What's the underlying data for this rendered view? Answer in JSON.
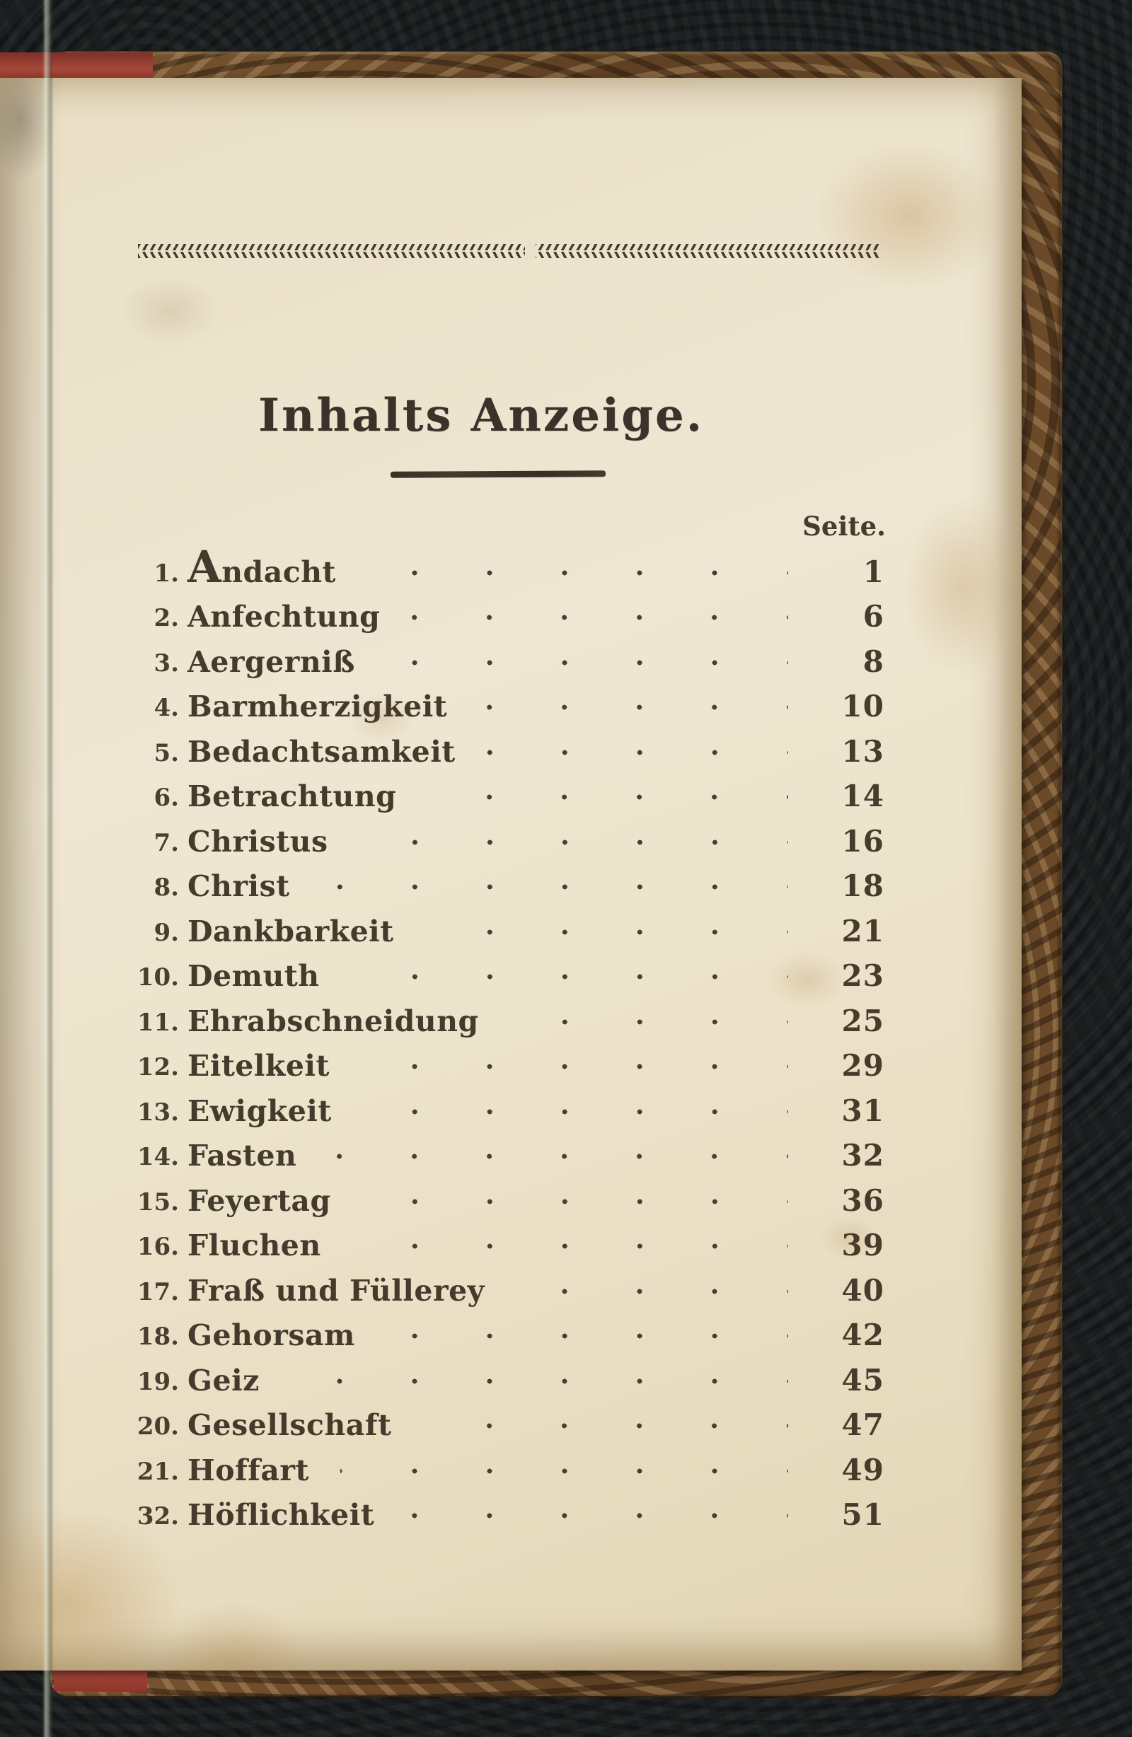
{
  "page": {
    "title": "Inhalts Anzeige.",
    "column_header": "Seite.",
    "entries": [
      {
        "num": "1.",
        "label": "Andacht",
        "page": "1"
      },
      {
        "num": "2.",
        "label": "Anfechtung",
        "page": "6"
      },
      {
        "num": "3.",
        "label": "Aergerniß",
        "page": "8"
      },
      {
        "num": "4.",
        "label": "Barmherzigkeit",
        "page": "10"
      },
      {
        "num": "5.",
        "label": "Bedachtsamkeit",
        "page": "13"
      },
      {
        "num": "6.",
        "label": "Betrachtung",
        "page": "14"
      },
      {
        "num": "7.",
        "label": "Christus",
        "page": "16"
      },
      {
        "num": "8.",
        "label": "Christ",
        "page": "18"
      },
      {
        "num": "9.",
        "label": "Dankbarkeit",
        "page": "21"
      },
      {
        "num": "10.",
        "label": "Demuth",
        "page": "23"
      },
      {
        "num": "11.",
        "label": "Ehrabschneidung",
        "page": "25"
      },
      {
        "num": "12.",
        "label": "Eitelkeit",
        "page": "29"
      },
      {
        "num": "13.",
        "label": "Ewigkeit",
        "page": "31"
      },
      {
        "num": "14.",
        "label": "Fasten",
        "page": "32"
      },
      {
        "num": "15.",
        "label": "Feyertag",
        "page": "36"
      },
      {
        "num": "16.",
        "label": "Fluchen",
        "page": "39"
      },
      {
        "num": "17.",
        "label": "Fraß und Füllerey",
        "page": "40"
      },
      {
        "num": "18.",
        "label": "Gehorsam",
        "page": "42"
      },
      {
        "num": "19.",
        "label": "Geiz",
        "page": "45"
      },
      {
        "num": "20.",
        "label": "Gesellschaft",
        "page": "47"
      },
      {
        "num": "21.",
        "label": "Hoffart",
        "page": "49"
      },
      {
        "num": "32.",
        "label": "Höflichkeit",
        "page": "51"
      }
    ]
  },
  "colors": {
    "paper": "#ece2c9",
    "ink": "#453a2c",
    "cover_brown": "#6f4e2c",
    "cover_edge_red": "#9c3a2e",
    "background_leather": "#1a1d1e"
  }
}
